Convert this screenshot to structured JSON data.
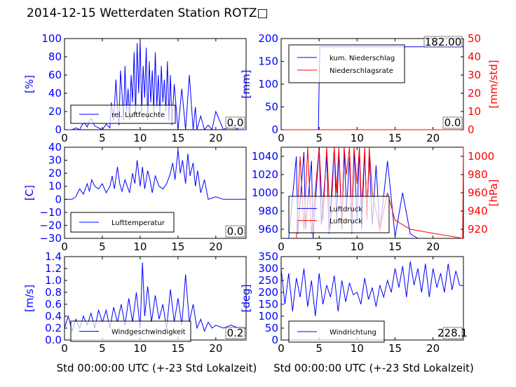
{
  "page": {
    "title": "2014-12-15 Wetterdaten Station ROTZ□"
  },
  "chart_data": [
    {
      "type": "line",
      "panel": "humidity",
      "xlabel": "",
      "ylabel": "[%]",
      "xlim": [
        0,
        24
      ],
      "ylim": [
        0,
        100
      ],
      "xticks": [
        "0",
        "5",
        "10",
        "15",
        "20"
      ],
      "yticks": [
        "0",
        "20",
        "40",
        "60",
        "80",
        "100"
      ],
      "legend": [
        {
          "name": "rel. Luftfeuchte",
          "color": "#0000ff"
        }
      ],
      "last_value": "0.0",
      "series": [
        {
          "name": "rel. Luftfeuchte",
          "color": "#0000ff",
          "x": [
            0,
            1,
            1.5,
            2,
            2.3,
            2.6,
            3,
            3.3,
            3.6,
            4,
            4.5,
            5,
            5.5,
            6,
            6.2,
            6.5,
            6.8,
            7,
            7.2,
            7.4,
            7.6,
            7.8,
            8,
            8.2,
            8.4,
            8.6,
            8.8,
            9,
            9.2,
            9.4,
            9.6,
            9.8,
            10,
            10.2,
            10.4,
            10.6,
            10.8,
            11,
            11.2,
            11.4,
            11.6,
            11.8,
            12,
            12.2,
            12.4,
            12.6,
            12.8,
            13,
            13.2,
            13.4,
            13.6,
            13.8,
            14,
            14.2,
            14.5,
            15,
            15.5,
            16,
            16.5,
            17,
            17.3,
            17.5,
            18,
            18.5,
            19,
            19.5,
            20,
            21,
            22,
            23,
            24
          ],
          "y": [
            0,
            0,
            2,
            0,
            5,
            8,
            3,
            10,
            12,
            4,
            2,
            0,
            6,
            2,
            30,
            10,
            55,
            25,
            5,
            65,
            40,
            10,
            70,
            20,
            45,
            10,
            60,
            30,
            85,
            15,
            95,
            40,
            98,
            20,
            70,
            35,
            90,
            10,
            75,
            30,
            65,
            20,
            85,
            25,
            60,
            15,
            70,
            30,
            55,
            20,
            75,
            10,
            60,
            5,
            50,
            0,
            45,
            0,
            60,
            0,
            25,
            0,
            15,
            0,
            5,
            0,
            20,
            0,
            5,
            0,
            0
          ]
        }
      ]
    },
    {
      "type": "line",
      "panel": "precipitation",
      "xlabel": "",
      "ylabel": "[mm]",
      "y2label": "[mm/std]",
      "xlim": [
        0,
        24
      ],
      "ylim": [
        0,
        200
      ],
      "y2lim": [
        0,
        50
      ],
      "xticks": [
        "0",
        "5",
        "10",
        "15",
        "20"
      ],
      "yticks": [
        "0",
        "50",
        "100",
        "150",
        "200"
      ],
      "y2ticks": [
        "0",
        "10",
        "20",
        "30",
        "40",
        "50"
      ],
      "legend": [
        {
          "name": "kum. Niederschlag",
          "color": "#0000ff"
        },
        {
          "name": "Niederschlagsrate",
          "color": "#ff0000"
        }
      ],
      "top_value": "182.00",
      "last_value": "0.0",
      "series": [
        {
          "name": "kum. Niederschlag",
          "color": "#0000ff",
          "axis": "left",
          "x": [
            0,
            4.9,
            5.0,
            5.1,
            24
          ],
          "y": [
            0,
            0,
            100,
            182,
            182
          ]
        },
        {
          "name": "Niederschlagsrate",
          "color": "#ff0000",
          "axis": "right",
          "x": [
            0,
            24
          ],
          "y": [
            0,
            0
          ]
        }
      ]
    },
    {
      "type": "line",
      "panel": "temperature",
      "xlabel": "",
      "ylabel": "[C]",
      "xlim": [
        0,
        24
      ],
      "ylim": [
        -30,
        40
      ],
      "xticks": [
        "0",
        "5",
        "10",
        "15",
        "20"
      ],
      "yticks": [
        "−30",
        "−20",
        "−10",
        "0",
        "10",
        "20",
        "30",
        "40"
      ],
      "legend": [
        {
          "name": "Lufttemperatur",
          "color": "#0000ff"
        }
      ],
      "last_value": "0.0",
      "series": [
        {
          "name": "Lufttemperatur",
          "color": "#0000ff",
          "x": [
            0,
            1,
            1.5,
            2,
            2.5,
            3,
            3.3,
            3.6,
            4,
            4.5,
            5,
            5.5,
            6,
            6.3,
            6.6,
            7,
            7.3,
            7.6,
            8,
            8.3,
            8.6,
            9,
            9.3,
            9.6,
            10,
            10.3,
            10.6,
            11,
            11.3,
            11.6,
            12,
            12.5,
            13,
            13.5,
            14,
            14.3,
            14.6,
            15,
            15.3,
            15.6,
            16,
            16.3,
            16.6,
            17,
            17.3,
            17.6,
            18,
            18.5,
            19,
            20,
            21,
            22,
            23,
            24
          ],
          "y": [
            0,
            0,
            2,
            8,
            4,
            12,
            6,
            15,
            10,
            8,
            12,
            5,
            10,
            18,
            8,
            25,
            12,
            6,
            15,
            10,
            5,
            20,
            12,
            30,
            10,
            25,
            8,
            22,
            15,
            5,
            18,
            10,
            8,
            12,
            20,
            28,
            15,
            38,
            20,
            30,
            12,
            35,
            18,
            28,
            10,
            22,
            5,
            15,
            0,
            2,
            0,
            0,
            0,
            0
          ]
        }
      ]
    },
    {
      "type": "line",
      "panel": "pressure",
      "xlabel": "",
      "ylabel": "",
      "y2label": "[hPa]",
      "xlim": [
        0,
        24
      ],
      "ylim": [
        950,
        1050
      ],
      "y2lim": [
        910,
        1010
      ],
      "xticks": [
        "0",
        "5",
        "10",
        "15",
        "20"
      ],
      "yticks": [
        "960",
        "980",
        "1000",
        "1020",
        "1040"
      ],
      "y2ticks": [
        "920",
        "940",
        "960",
        "980",
        "1000"
      ],
      "legend": [
        {
          "name": "Luftdruck",
          "color": "#0000ff"
        },
        {
          "name": "Luftdruck",
          "color": "#ff0000"
        }
      ],
      "series": [
        {
          "name": "Luftdruck",
          "color": "#0000ff",
          "axis": "left",
          "x": [
            1,
            2,
            2.2,
            3,
            3.2,
            4,
            4.2,
            5,
            5.3,
            6,
            6.3,
            7,
            7.3,
            7.6,
            8,
            8.3,
            8.6,
            9,
            9.3,
            9.6,
            10,
            10.3,
            10.6,
            11,
            11.3,
            11.6,
            12,
            12.5,
            13,
            14,
            15,
            16,
            17,
            18
          ],
          "y": [
            950,
            1040,
            955,
            1045,
            960,
            1035,
            950,
            1050,
            965,
            1040,
            955,
            1050,
            970,
            1045,
            960,
            1050,
            980,
            1040,
            955,
            1048,
            970,
            1050,
            960,
            1045,
            975,
            1040,
            965,
            1030,
            958,
            1035,
            952,
            1000,
            955,
            950
          ]
        },
        {
          "name": "Luftdruck",
          "color": "#ff0000",
          "axis": "right",
          "x": [
            2,
            2.5,
            3,
            3.5,
            4,
            5,
            5.5,
            6,
            6.5,
            7,
            7.3,
            7.6,
            8,
            8.3,
            8.6,
            9,
            9.3,
            9.6,
            10,
            10.3,
            10.6,
            11,
            11.3,
            11.6,
            12,
            13,
            14,
            15,
            17,
            23.9,
            24
          ],
          "y": [
            910,
            1000,
            920,
            1010,
            915,
            1010,
            930,
            1010,
            920,
            1010,
            960,
            1010,
            925,
            1010,
            980,
            1010,
            930,
            1010,
            970,
            1010,
            940,
            1010,
            930,
            1010,
            960,
            920,
            960,
            930,
            920,
            910,
            1010
          ]
        }
      ]
    },
    {
      "type": "line",
      "panel": "wind-speed",
      "xlabel": "Std 00:00:00 UTC (+-23 Std Lokalzeit)",
      "ylabel": "[m/s]",
      "xlim": [
        0,
        24
      ],
      "ylim": [
        0.0,
        1.4
      ],
      "xticks": [
        "0",
        "5",
        "10",
        "15",
        "20"
      ],
      "yticks": [
        "0.0",
        "0.2",
        "0.4",
        "0.6",
        "0.8",
        "1.0",
        "1.2",
        "1.4"
      ],
      "legend": [
        {
          "name": "Windgeschwindigkeit",
          "color": "#0000ff"
        }
      ],
      "last_value": "0.2",
      "series": [
        {
          "name": "Windgeschwindigkeit",
          "color": "#0000ff",
          "x": [
            0,
            0.5,
            1,
            1.5,
            2,
            2.5,
            3,
            3.5,
            4,
            4.5,
            5,
            5.5,
            6,
            6.5,
            7,
            7.5,
            8,
            8.5,
            9,
            9.5,
            10,
            10.3,
            10.6,
            11,
            11.5,
            12,
            12.5,
            13,
            13.5,
            14,
            14.5,
            15,
            15.5,
            16,
            16.5,
            17,
            17.5,
            18,
            18.5,
            19,
            19.5,
            20,
            21,
            22,
            23,
            24
          ],
          "y": [
            0.2,
            0.4,
            0.15,
            0.35,
            0.2,
            0.4,
            0.25,
            0.45,
            0.2,
            0.5,
            0.3,
            0.5,
            0.2,
            0.55,
            0.3,
            0.6,
            0.25,
            0.7,
            0.3,
            0.8,
            0.2,
            1.3,
            0.4,
            0.9,
            0.3,
            0.75,
            0.35,
            0.6,
            0.2,
            0.85,
            0.3,
            0.7,
            0.25,
            1.1,
            0.3,
            0.6,
            0.2,
            0.35,
            0.15,
            0.3,
            0.2,
            0.25,
            0.2,
            0.25,
            0.2,
            0.2
          ]
        }
      ]
    },
    {
      "type": "line",
      "panel": "wind-direction",
      "xlabel": "Std 00:00:00 UTC (+-23 Std Lokalzeit)",
      "ylabel": "[deg]",
      "xlim": [
        0,
        24
      ],
      "ylim": [
        0,
        350
      ],
      "xticks": [
        "0",
        "5",
        "10",
        "15",
        "20"
      ],
      "yticks": [
        "0",
        "50",
        "100",
        "150",
        "200",
        "250",
        "300",
        "350"
      ],
      "legend": [
        {
          "name": "Windrichtung",
          "color": "#0000ff"
        }
      ],
      "last_value": "228.1",
      "series": [
        {
          "name": "Windrichtung",
          "color": "#0000ff",
          "x": [
            0,
            0.5,
            1,
            1.5,
            2,
            2.5,
            3,
            3.5,
            4,
            4.5,
            5,
            5.5,
            6,
            6.5,
            7,
            7.5,
            8,
            8.5,
            9,
            9.5,
            10,
            10.5,
            11,
            11.5,
            12,
            12.5,
            13,
            13.5,
            14,
            14.5,
            15,
            15.5,
            16,
            16.5,
            17,
            17.5,
            18,
            18.5,
            19,
            19.5,
            20,
            20.5,
            21,
            21.5,
            22,
            22.5,
            23,
            23.5,
            24
          ],
          "y": [
            300,
            150,
            280,
            120,
            260,
            180,
            300,
            140,
            250,
            100,
            280,
            150,
            230,
            180,
            270,
            120,
            250,
            160,
            240,
            190,
            200,
            150,
            260,
            170,
            220,
            140,
            230,
            180,
            250,
            200,
            300,
            220,
            310,
            180,
            330,
            230,
            300,
            200,
            320,
            180,
            300,
            220,
            280,
            200,
            320,
            210,
            290,
            230,
            228
          ]
        }
      ]
    }
  ]
}
